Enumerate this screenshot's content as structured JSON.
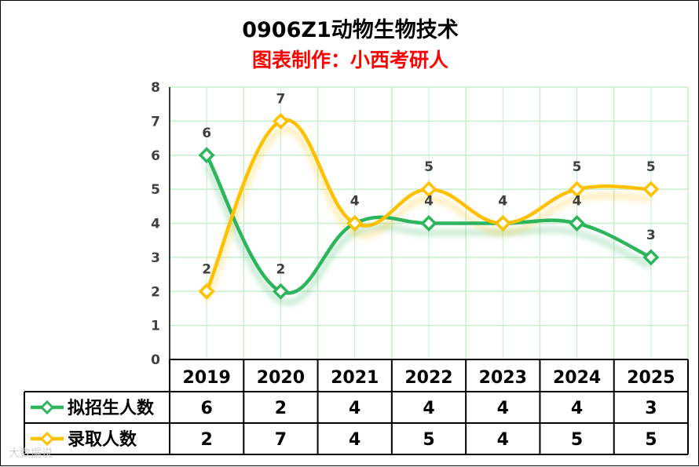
{
  "chart_data": {
    "type": "line",
    "title": "0906Z1动物生物技术",
    "subtitle": "图表制作：小西考研人",
    "categories": [
      "2019",
      "2020",
      "2021",
      "2022",
      "2023",
      "2024",
      "2025"
    ],
    "ylim": [
      0,
      8
    ],
    "yticks": [
      "0",
      "1",
      "2",
      "3",
      "4",
      "5",
      "6",
      "7",
      "8"
    ],
    "grid": true,
    "smooth": true,
    "legend": "data-table",
    "series": [
      {
        "name": "拟招生人数",
        "color": "#2db55d",
        "values": [
          6,
          2,
          4,
          4,
          4,
          4,
          3
        ]
      },
      {
        "name": "录取人数",
        "color": "#ffc000",
        "values": [
          2,
          7,
          4,
          5,
          4,
          5,
          5
        ]
      }
    ]
  },
  "colors": {
    "grid": "#c6efce",
    "table_border": "#000000"
  },
  "watermark": "大数据说"
}
